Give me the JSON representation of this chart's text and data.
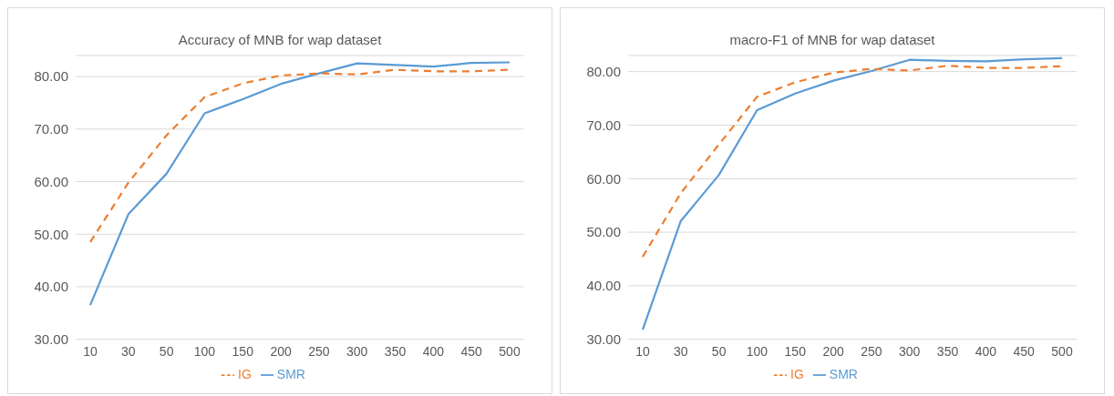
{
  "chart_data": [
    {
      "type": "line",
      "title": "Accuracy of MNB for wap dataset",
      "categories": [
        "10",
        "30",
        "50",
        "100",
        "150",
        "200",
        "250",
        "300",
        "350",
        "400",
        "450",
        "500"
      ],
      "series": [
        {
          "name": "SMR",
          "color": "#5b9bd5",
          "line_style": "solid",
          "values": [
            36.5,
            53.8,
            61.5,
            73.0,
            75.7,
            78.6,
            80.6,
            82.5,
            82.2,
            81.9,
            82.6,
            82.7
          ]
        },
        {
          "name": "IG",
          "color": "#ed7d31",
          "line_style": "dashed",
          "values": [
            48.5,
            59.8,
            68.8,
            76.1,
            78.7,
            80.2,
            80.6,
            80.4,
            81.3,
            81.0,
            81.0,
            81.3
          ]
        }
      ],
      "ylim": [
        30,
        84
      ],
      "yticks": [
        {
          "value": 30,
          "label": "30.00"
        },
        {
          "value": 40,
          "label": "40.00"
        },
        {
          "value": 50,
          "label": "50.00"
        },
        {
          "value": 60,
          "label": "60.00"
        },
        {
          "value": 70,
          "label": "70.00"
        },
        {
          "value": 80,
          "label": "80.00"
        }
      ],
      "grid": "y",
      "legend": "bottom",
      "marker": "none"
    },
    {
      "type": "line",
      "title": "macro-F1 of MNB for wap dataset",
      "categories": [
        "10",
        "30",
        "50",
        "100",
        "150",
        "200",
        "250",
        "300",
        "350",
        "400",
        "450",
        "500"
      ],
      "series": [
        {
          "name": "SMR",
          "color": "#5b9bd5",
          "line_style": "solid",
          "values": [
            31.8,
            52.1,
            60.7,
            72.8,
            75.9,
            78.3,
            80.1,
            82.2,
            82.0,
            81.9,
            82.3,
            82.5
          ]
        },
        {
          "name": "IG",
          "color": "#ed7d31",
          "line_style": "dashed",
          "values": [
            45.4,
            57.3,
            66.4,
            75.3,
            78.0,
            79.8,
            80.5,
            80.2,
            81.1,
            80.7,
            80.7,
            81.0
          ]
        }
      ],
      "ylim": [
        30,
        83
      ],
      "yticks": [
        {
          "value": 30,
          "label": "30.00"
        },
        {
          "value": 40,
          "label": "40.00"
        },
        {
          "value": 50,
          "label": "50.00"
        },
        {
          "value": 60,
          "label": "60.00"
        },
        {
          "value": 70,
          "label": "70.00"
        },
        {
          "value": 80,
          "label": "80.00"
        }
      ],
      "grid": "y",
      "legend": "bottom",
      "marker": "none"
    }
  ]
}
